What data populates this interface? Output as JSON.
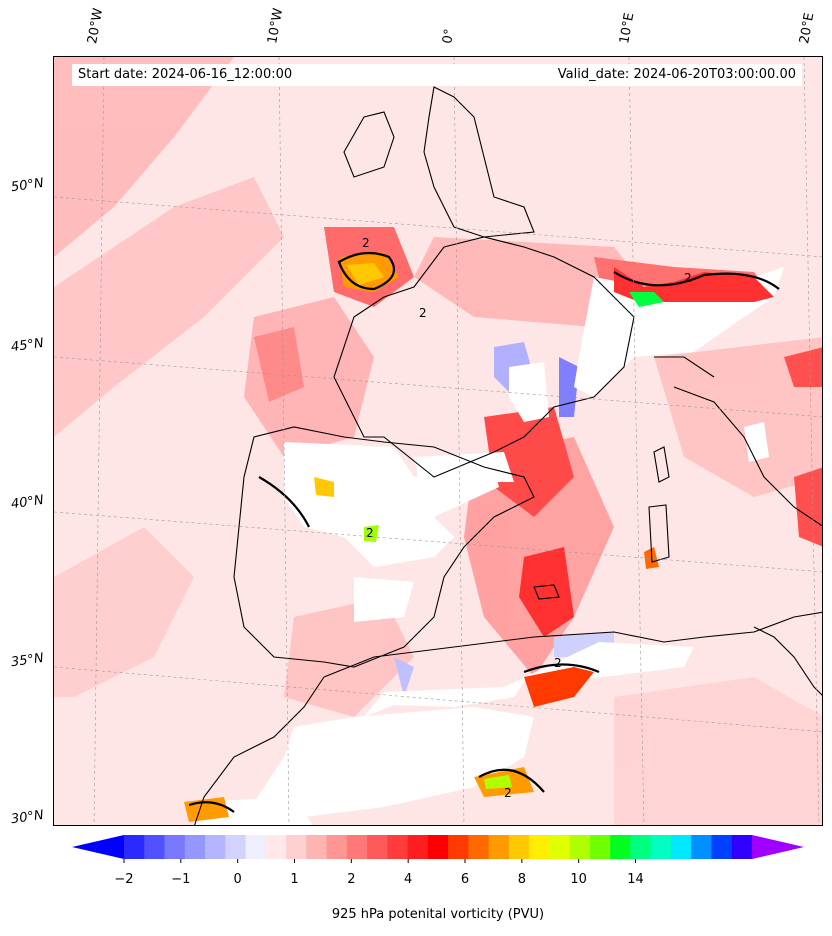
{
  "header": {
    "start_date": "Start date: 2024-06-16_12:00:00",
    "valid_date": "Valid_date: 2024-06-20T03:00:00.00"
  },
  "longitude_labels": [
    "20°W",
    "10°W",
    "0°",
    "10°E",
    "20°E"
  ],
  "latitude_labels": [
    "50°N",
    "45°N",
    "40°N",
    "35°N",
    "30°N"
  ],
  "contour_label": "2",
  "colorbar": {
    "label": "925 hPa potenital vorticity (PVU)",
    "tick_labels": [
      "−2",
      "−1",
      "0",
      "1",
      "2",
      "4",
      "6",
      "8",
      "10",
      "14"
    ],
    "colors": [
      "#0000ff",
      "#2a2aff",
      "#5050ff",
      "#7878ff",
      "#9696ff",
      "#b4b4ff",
      "#d2d2ff",
      "#eeeeff",
      "#ffe8e8",
      "#ffd0d0",
      "#ffb4b4",
      "#ff9696",
      "#ff7878",
      "#ff5a5a",
      "#ff3c3c",
      "#ff1e1e",
      "#ff0000",
      "#ff3a00",
      "#ff6a00",
      "#ff9a00",
      "#ffc800",
      "#ffee00",
      "#e0ff00",
      "#b0ff00",
      "#70ff00",
      "#00ff20",
      "#00ff80",
      "#00ffc0",
      "#00e8ff",
      "#0090ff",
      "#0040ff",
      "#3000ff",
      "#a000ff"
    ],
    "extend": "both"
  },
  "icons": {
    "north": "none"
  }
}
